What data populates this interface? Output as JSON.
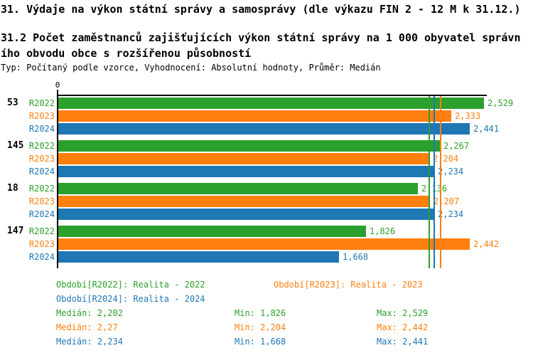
{
  "title1": "31. Výdaje na výkon státní správy a samosprávy (dle výkazu FIN 2 - 12 M k 31.12.)",
  "title2": "31.2 Počet zaměstnanců zajišťujících výkon státní správy na 1 000 obyvatel správního obvodu obce s rozšířenou působností",
  "subtitle": "Typ: Počítaný podle vzorce, Vyhodnocení: Absolutní hodnoty, Průměr: Medián",
  "colors": {
    "green": "#2ca02c",
    "orange": "#ff7f0e",
    "blue": "#1f77b4",
    "axis": "#000000"
  },
  "chart_data": {
    "type": "bar",
    "orientation": "horizontal",
    "grid": false,
    "legend_position": "bottom",
    "x_axis": {
      "zero_label": "0",
      "min": 0,
      "max": 2.55
    },
    "categories": [
      "53",
      "145",
      "18",
      "147"
    ],
    "series": [
      {
        "name": "R2022",
        "legend_label": "Realita - 2022",
        "color": "#2ca02c",
        "values": [
          2.529,
          2.267,
          2.136,
          1.826
        ],
        "value_labels": [
          "2,529",
          "2,267",
          "2,136",
          "1,826"
        ],
        "median": 2.202
      },
      {
        "name": "R2023",
        "legend_label": "Realita - 2023",
        "color": "#ff7f0e",
        "values": [
          2.333,
          2.204,
          2.207,
          2.442
        ],
        "value_labels": [
          "2,333",
          "2,204",
          "2,207",
          "2,442"
        ],
        "median": 2.27
      },
      {
        "name": "R2024",
        "legend_label": "Realita - 2024",
        "color": "#1f77b4",
        "values": [
          2.441,
          2.234,
          2.234,
          1.668
        ],
        "value_labels": [
          "2,441",
          "2,234",
          "2,234",
          "1,668"
        ],
        "median": 2.234
      }
    ]
  },
  "legend": {
    "items": [
      {
        "label": "Období[R2022]: Realita - 2022",
        "color": "#2ca02c"
      },
      {
        "label": "Období[R2023]: Realita - 2023",
        "color": "#ff7f0e"
      },
      {
        "label": "Období[R2024]: Realita - 2024",
        "color": "#1f77b4"
      }
    ]
  },
  "stats": [
    {
      "median": "Medián: 2,202",
      "min": "Min: 1,826",
      "max": "Max: 2,529",
      "color": "#2ca02c"
    },
    {
      "median": "Medián: 2,27",
      "min": "Min: 2,204",
      "max": "Max: 2,442",
      "color": "#ff7f0e"
    },
    {
      "median": "Medián: 2,234",
      "min": "Min: 1,668",
      "max": "Max: 2,441",
      "color": "#1f77b4"
    }
  ]
}
